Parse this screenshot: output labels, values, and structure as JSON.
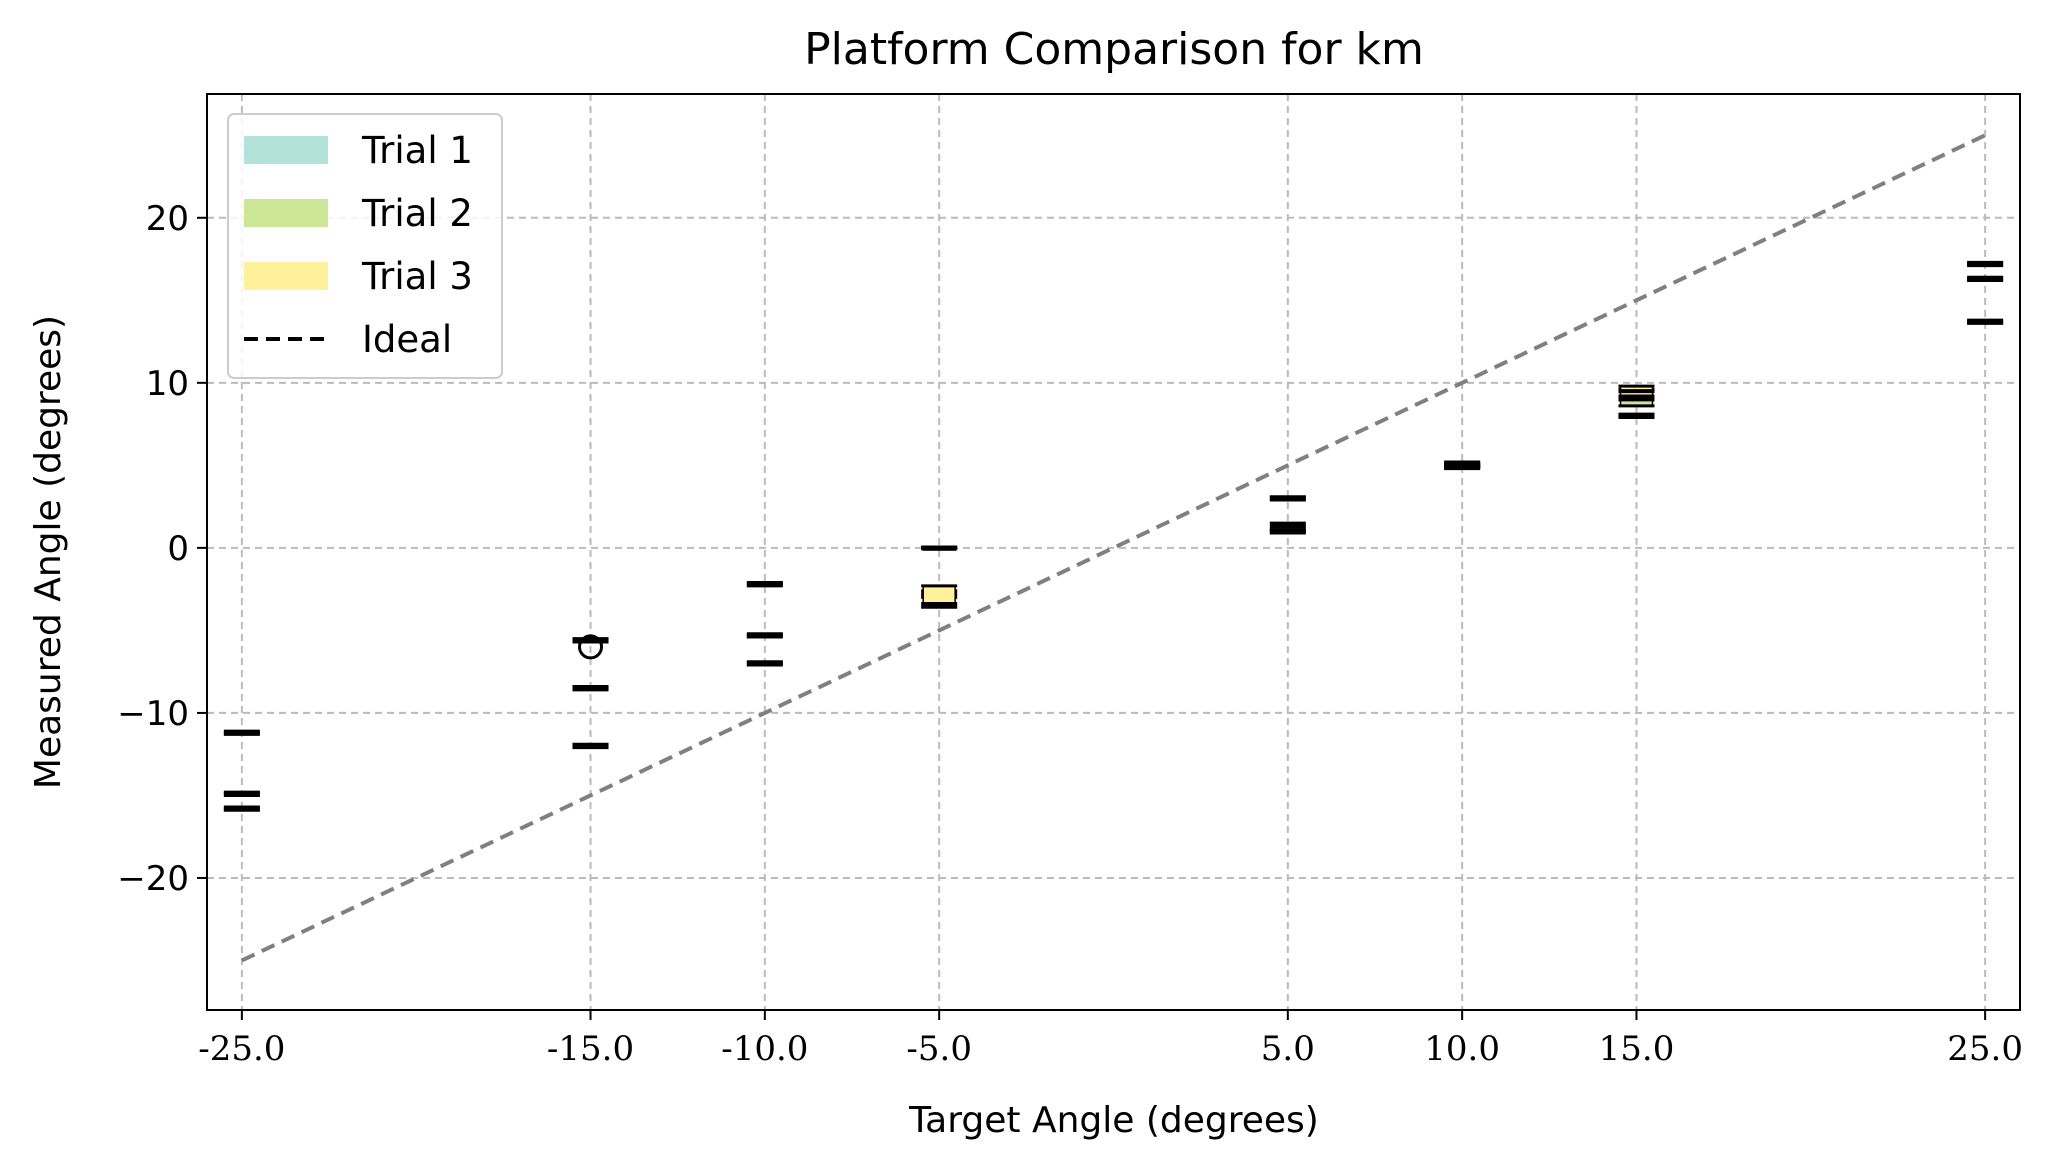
{
  "chart_data": {
    "type": "box",
    "title": "Platform Comparison for km",
    "xlabel": "Target Angle (degrees)",
    "ylabel": "Measured Angle (degrees)",
    "xlim": [
      -26,
      26
    ],
    "ylim": [
      -28,
      27.5
    ],
    "xticks": [
      -25,
      -15,
      -10,
      -5,
      5,
      10,
      15,
      25
    ],
    "xtick_labels": [
      "-25.0",
      "-15.0",
      "-10.0",
      "-5.0",
      "5.0",
      "10.0",
      "15.0",
      "25.0"
    ],
    "yticks": [
      -20,
      -10,
      0,
      10,
      20
    ],
    "ytick_labels": [
      "−20",
      "−10",
      "0",
      "10",
      "20"
    ],
    "grid": true,
    "legend_position": "top-left",
    "colors": {
      "trial1": "#b3e2d9",
      "trial2": "#cbe795",
      "trial3": "#fff19b",
      "ideal": "#808080",
      "grid": "#bbbbbb"
    },
    "legend": [
      {
        "label": "Trial 1",
        "kind": "patch",
        "color": "#b3e2d9"
      },
      {
        "label": "Trial 2",
        "kind": "patch",
        "color": "#cbe795"
      },
      {
        "label": "Trial 3",
        "kind": "patch",
        "color": "#fff19b"
      },
      {
        "label": "Ideal",
        "kind": "dashed-line",
        "color": "#000000"
      }
    ],
    "ideal_line": {
      "x": [
        -25,
        25
      ],
      "y": [
        -25,
        25
      ]
    },
    "series": [
      {
        "name": "Trial 1",
        "color": "#b3e2d9",
        "boxes": [
          {
            "x": -25,
            "q1": -11.3,
            "median": -11.2,
            "q3": -11.1
          },
          {
            "x": -15,
            "q1": -12.1,
            "median": -12.0,
            "q3": -11.9,
            "outliers": [
              -6.0
            ]
          },
          {
            "x": -10,
            "q1": -7.1,
            "median": -7.0,
            "q3": -6.9
          },
          {
            "x": -5,
            "q1": -3.0,
            "median": -2.8,
            "q3": -2.6
          },
          {
            "x": 5,
            "q1": 1.1,
            "median": 1.3,
            "q3": 1.5
          },
          {
            "x": 10,
            "q1": 4.9,
            "median": 5.0,
            "q3": 5.1
          },
          {
            "x": 15,
            "q1": 7.9,
            "median": 8.0,
            "q3": 8.1
          },
          {
            "x": 25,
            "q1": 13.6,
            "median": 13.7,
            "q3": 13.8
          }
        ]
      },
      {
        "name": "Trial 2",
        "color": "#cbe795",
        "boxes": [
          {
            "x": -25,
            "q1": -15.9,
            "median": -15.8,
            "q3": -15.7
          },
          {
            "x": -15,
            "q1": -8.6,
            "median": -8.5,
            "q3": -8.4
          },
          {
            "x": -10,
            "q1": -2.3,
            "median": -2.2,
            "q3": -2.1
          },
          {
            "x": -5,
            "q1": -0.05,
            "median": 0.0,
            "q3": 0.05
          },
          {
            "x": 5,
            "q1": 2.9,
            "median": 3.0,
            "q3": 3.1
          },
          {
            "x": 10,
            "q1": 4.9,
            "median": 5.1,
            "q3": 5.2
          },
          {
            "x": 15,
            "q1": 8.6,
            "median": 9.0,
            "q3": 9.6
          },
          {
            "x": 25,
            "q1": 16.2,
            "median": 16.3,
            "q3": 16.4
          }
        ]
      },
      {
        "name": "Trial 3",
        "color": "#fff19b",
        "boxes": [
          {
            "x": -25,
            "q1": -15.0,
            "median": -14.9,
            "q3": -14.8
          },
          {
            "x": -15,
            "q1": -5.7,
            "median": -5.6,
            "q3": -5.5
          },
          {
            "x": -10,
            "q1": -5.4,
            "median": -5.3,
            "q3": -5.2
          },
          {
            "x": -5,
            "q1": -3.6,
            "median": -3.4,
            "q3": -2.3
          },
          {
            "x": 5,
            "q1": 0.9,
            "median": 1.0,
            "q3": 1.1
          },
          {
            "x": 10,
            "q1": 4.8,
            "median": 4.9,
            "q3": 5.0
          },
          {
            "x": 15,
            "q1": 9.2,
            "median": 9.5,
            "q3": 9.8
          },
          {
            "x": 25,
            "q1": 17.1,
            "median": 17.2,
            "q3": 17.3
          }
        ]
      }
    ]
  }
}
